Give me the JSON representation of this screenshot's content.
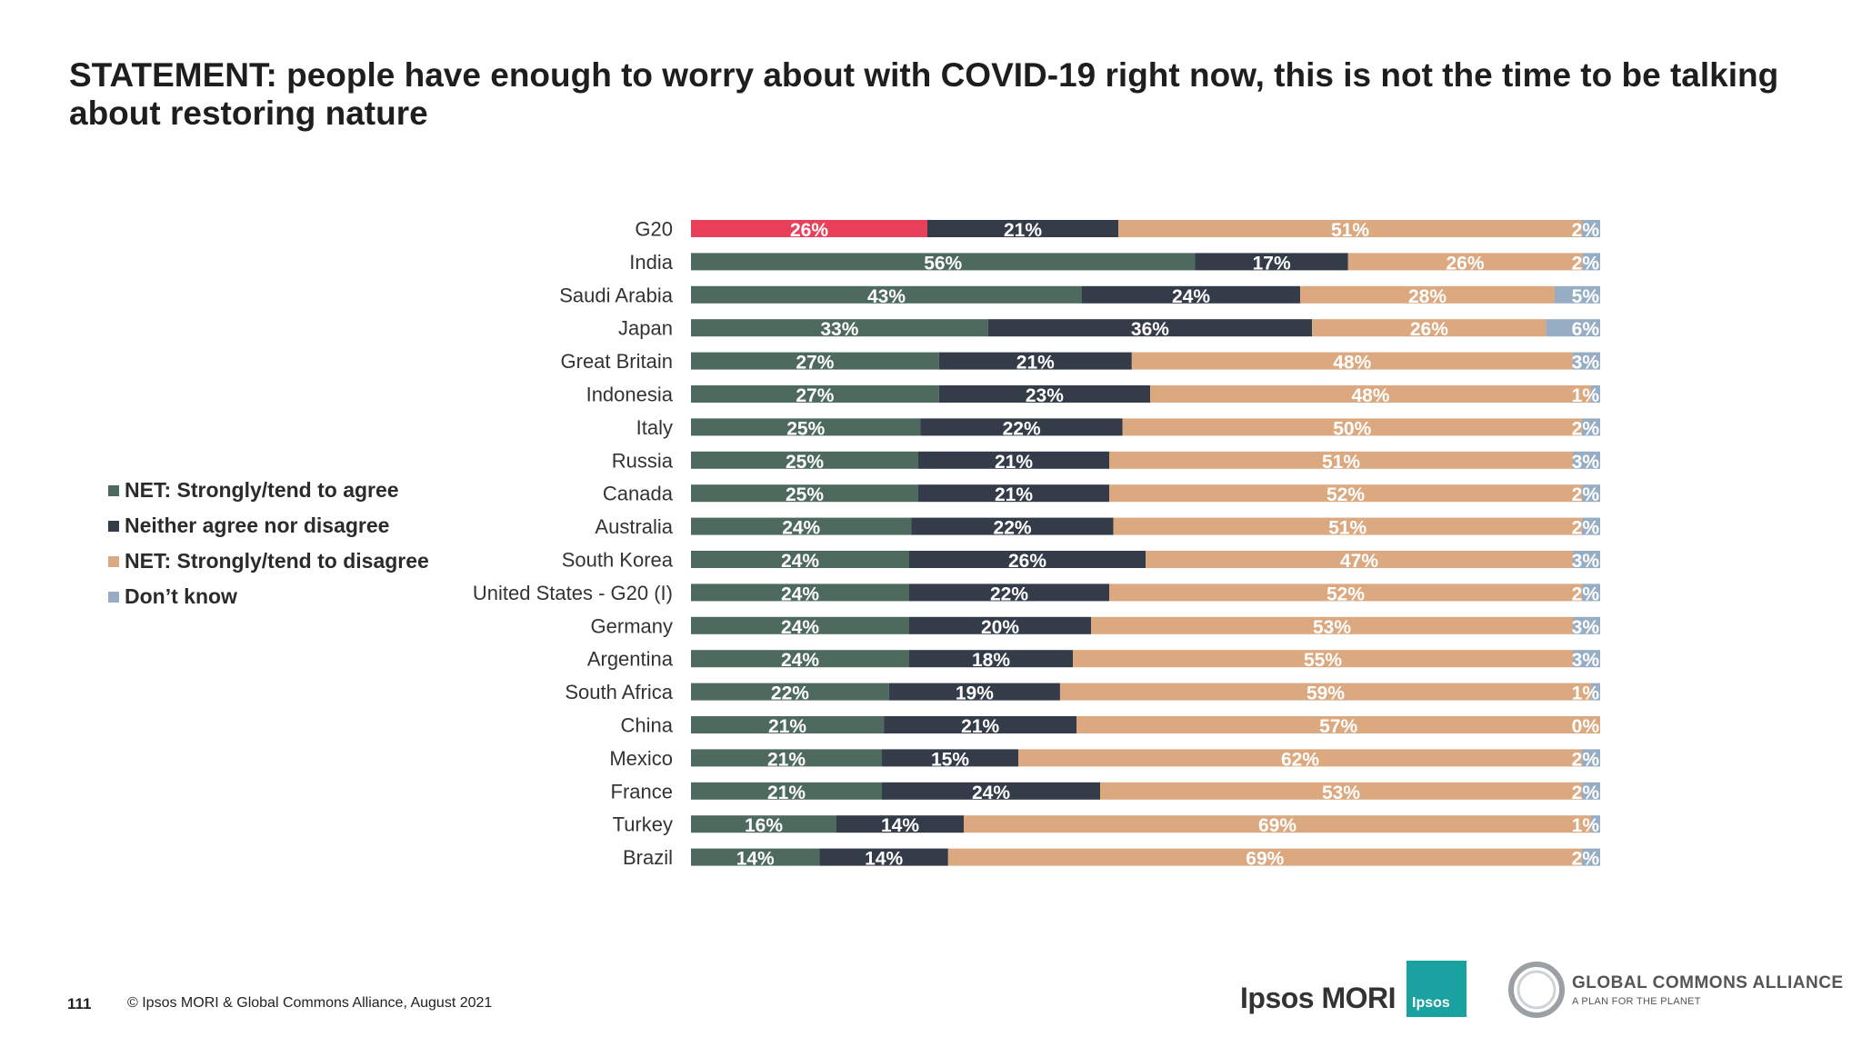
{
  "title": "STATEMENT: people have enough to worry about with COVID-19 right now, this is not the time to be talking about restoring nature",
  "legend": [
    {
      "label": "NET: Strongly/tend to agree",
      "color": "#4e6a5e"
    },
    {
      "label": "Neither agree nor disagree",
      "color": "#333c48"
    },
    {
      "label": "NET: Strongly/tend to disagree",
      "color": "#dba880"
    },
    {
      "label": "Don’t know",
      "color": "#97adc4"
    }
  ],
  "colors": {
    "agree": "#4e6a5e",
    "agree_highlight": "#e8405a",
    "neither": "#333c48",
    "disagree": "#dba880",
    "dont_know": "#97adc4"
  },
  "chart_data": {
    "type": "bar",
    "orientation": "horizontal-stacked-100",
    "categories": [
      "G20",
      "India",
      "Saudi Arabia",
      "Japan",
      "Great Britain",
      "Indonesia",
      "Italy",
      "Russia",
      "Canada",
      "Australia",
      "South Korea",
      "United States - G20 (I)",
      "Germany",
      "Argentina",
      "South Africa",
      "China",
      "Mexico",
      "France",
      "Turkey",
      "Brazil"
    ],
    "series": [
      {
        "name": "NET: Strongly/tend to agree",
        "values": [
          26,
          56,
          43,
          33,
          27,
          27,
          25,
          25,
          25,
          24,
          24,
          24,
          24,
          24,
          22,
          21,
          21,
          21,
          16,
          14
        ]
      },
      {
        "name": "Neither agree nor disagree",
        "values": [
          21,
          17,
          24,
          36,
          21,
          23,
          22,
          21,
          21,
          22,
          26,
          22,
          20,
          18,
          19,
          21,
          15,
          24,
          14,
          14
        ]
      },
      {
        "name": "NET: Strongly/tend to disagree",
        "values": [
          51,
          26,
          28,
          26,
          48,
          48,
          50,
          51,
          52,
          51,
          47,
          52,
          53,
          55,
          59,
          57,
          62,
          53,
          69,
          69
        ]
      },
      {
        "name": "Don’t know",
        "values": [
          2,
          2,
          5,
          6,
          3,
          1,
          2,
          3,
          2,
          2,
          3,
          2,
          3,
          3,
          1,
          0,
          2,
          2,
          1,
          2
        ]
      }
    ],
    "data_labels": [
      [
        "26%",
        "21%",
        "51%",
        "2%"
      ],
      [
        "56%",
        "17%",
        "26%",
        "2%"
      ],
      [
        "43%",
        "24%",
        "28%",
        "5%"
      ],
      [
        "33%",
        "36%",
        "26%",
        "6%"
      ],
      [
        "27%",
        "21%",
        "48%",
        "3%"
      ],
      [
        "27%",
        "23%",
        "48%",
        "1%"
      ],
      [
        "25%",
        "22%",
        "50%",
        "2%"
      ],
      [
        "25%",
        "21%",
        "51%",
        "3%"
      ],
      [
        "25%",
        "21%",
        "52%",
        "2%"
      ],
      [
        "24%",
        "22%",
        "51%",
        "2%"
      ],
      [
        "24%",
        "26%",
        "47%",
        "3%"
      ],
      [
        "24%",
        "22%",
        "52%",
        "2%"
      ],
      [
        "24%",
        "20%",
        "53%",
        "3%"
      ],
      [
        "24%",
        "18%",
        "55%",
        "3%"
      ],
      [
        "22%",
        "19%",
        "59%",
        "1%"
      ],
      [
        "21%",
        "21%",
        "57%",
        "0%"
      ],
      [
        "21%",
        "15%",
        "62%",
        "2%"
      ],
      [
        "21%",
        "24%",
        "53%",
        "2%"
      ],
      [
        "16%",
        "14%",
        "69%",
        "1%"
      ],
      [
        "14%",
        "14%",
        "69%",
        "2%"
      ]
    ],
    "highlight_category": "G20",
    "xlim": [
      0,
      100
    ]
  },
  "footer": {
    "page_number": "111",
    "copyright": "© Ipsos MORI & Global Commons Alliance, August 2021"
  },
  "logos": {
    "ipsos_mori": "Ipsos MORI",
    "ipsos_badge": "Ipsos",
    "gca_name": "GLOBAL COMMONS ALLIANCE",
    "gca_tagline": "A PLAN FOR THE PLANET"
  }
}
